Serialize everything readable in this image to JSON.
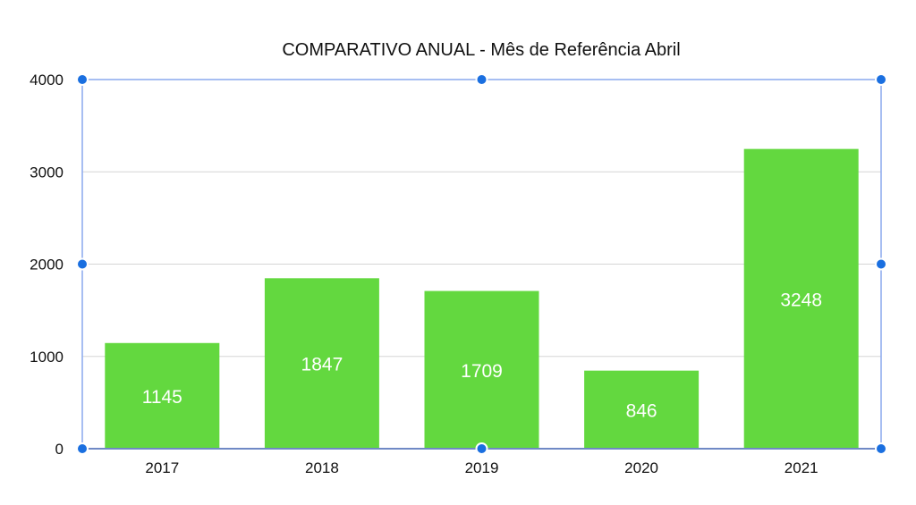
{
  "chart_data": {
    "type": "bar",
    "title": "COMPARATIVO ANUAL - Mês de Referência Abril",
    "categories": [
      "2017",
      "2018",
      "2019",
      "2020",
      "2021"
    ],
    "values": [
      1145,
      1847,
      1709,
      846,
      3248
    ],
    "xlabel": "",
    "ylabel": "",
    "ylim": [
      0,
      4000
    ],
    "yticks": [
      "0",
      "1000",
      "2000",
      "3000",
      "4000"
    ],
    "grid": true,
    "bar_color": "#63d83f",
    "selection_color": "#1a6fe0"
  }
}
